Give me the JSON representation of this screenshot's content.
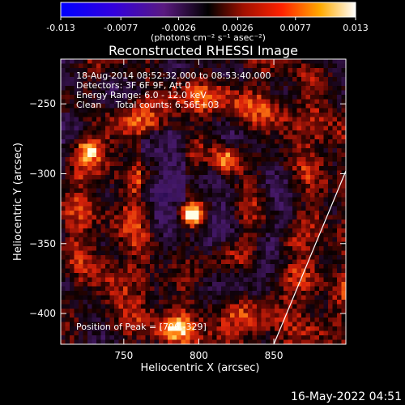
{
  "chart_data": {
    "type": "heatmap",
    "title": "Reconstructed RHESSI Image",
    "xlabel": "Heliocentric X (arcsec)",
    "ylabel": "Heliocentric Y (arcsec)",
    "xlim": [
      708,
      898
    ],
    "ylim": [
      -422,
      -218
    ],
    "xticks": [
      750,
      800,
      850
    ],
    "yticks": [
      -250,
      -300,
      -350,
      -400
    ],
    "colorbar": {
      "min": -0.013,
      "max": 0.013,
      "ticks": [
        "-0.013",
        "-0.0077",
        "-0.0026",
        "0.0026",
        "0.0077",
        "0.013"
      ],
      "label": "(photons cm⁻² s⁻¹ asec⁻²)",
      "colormap": "purple-black-red-yellow-white"
    },
    "info_lines": [
      "18-Aug-2014 08:52:32.000 to 08:53:40.000",
      "Detectors: 3F 6F 9F, Att 0",
      "Energy Range: 6.0 - 12.0 keV",
      "Clean     Total counts: 6.56E+03"
    ],
    "peak_text": "Position of Peak = [796,-329]",
    "peak": {
      "x": 796,
      "y": -329
    },
    "secondary_sources": [
      {
        "x": 818,
        "y": -290
      },
      {
        "x": 727,
        "y": -283
      },
      {
        "x": 860,
        "y": -348
      },
      {
        "x": 785,
        "y": -410
      }
    ],
    "limb_line": [
      [
        850,
        -422
      ],
      [
        898,
        -298
      ]
    ]
  },
  "timestamp": "16-May-2022 04:51"
}
